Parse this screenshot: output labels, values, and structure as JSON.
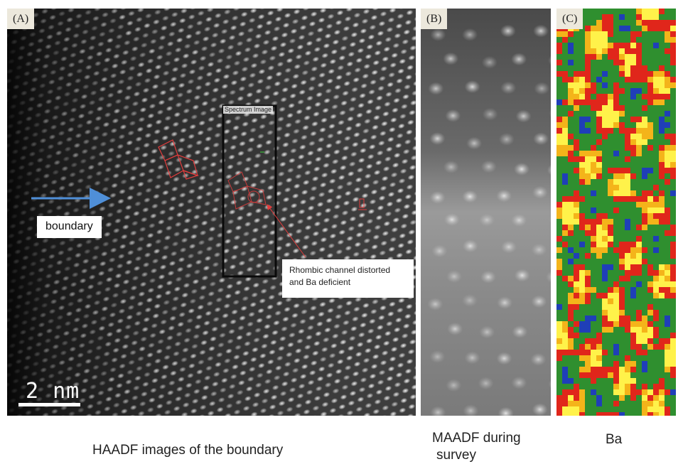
{
  "panels": {
    "a": {
      "tag": "(A)",
      "boundary_label": "boundary",
      "spectrum_label": "Spectrum Image",
      "callout_line1": "Rhombic channel distorted",
      "callout_line2": "and Ba deficient",
      "scale_label": "2 nm",
      "caption": "HAADF images of the boundary"
    },
    "b": {
      "tag": "(B)",
      "caption_line1": "MAADF during",
      "caption_line2": "survey"
    },
    "c": {
      "tag": "(C)",
      "caption": "Ba"
    }
  },
  "colors": {
    "arrow": "#4f8fd8",
    "overlay": "#e23c3c",
    "spectrum_box": "#0a0a0a",
    "map_palette": [
      "#2f8f2f",
      "#e0261b",
      "#f4b41a",
      "#fff24a",
      "#1f3fb8"
    ]
  }
}
